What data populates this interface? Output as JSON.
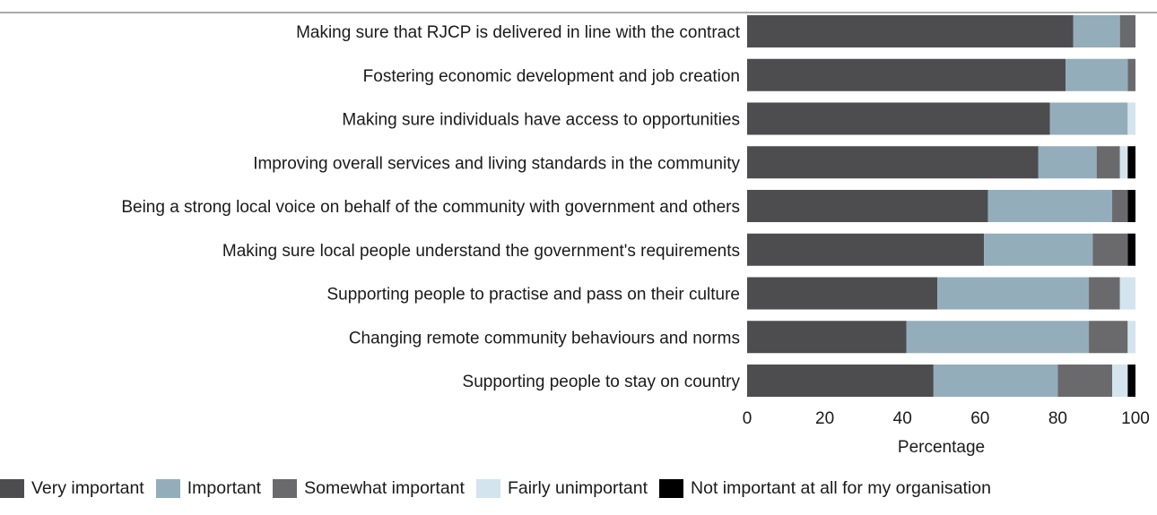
{
  "chart_data": {
    "type": "bar",
    "orientation": "horizontal",
    "stacked": true,
    "title": "",
    "xlabel": "Percentage",
    "ylabel": "",
    "xlim": [
      0,
      100
    ],
    "xticks": [
      "0",
      "20",
      "40",
      "60",
      "80",
      "100"
    ],
    "grid": false,
    "legend_position": "bottom",
    "categories": [
      "Making sure that RJCP is delivered in line with the contract",
      "Fostering economic development and job creation",
      "Making sure individuals have access to opportunities",
      "Improving overall services and living standards in the community",
      "Being a strong local voice on behalf of the community with government and others",
      "Making sure local people understand the government's requirements",
      "Supporting people to practise and pass on their culture",
      "Changing remote community behaviours and norms",
      "Supporting people to stay on country"
    ],
    "series": [
      {
        "name": "Very important",
        "color": "#4d4d4f",
        "values": [
          84,
          82,
          78,
          75,
          62,
          61,
          49,
          41,
          48
        ]
      },
      {
        "name": "Important",
        "color": "#93adbb",
        "values": [
          12,
          16,
          20,
          15,
          32,
          28,
          39,
          47,
          32
        ]
      },
      {
        "name": "Somewhat important",
        "color": "#6a6a6c",
        "values": [
          4,
          2,
          0,
          6,
          4,
          9,
          8,
          10,
          14
        ]
      },
      {
        "name": "Fairly unimportant",
        "color": "#d4e4ee",
        "values": [
          0,
          0,
          2,
          2,
          0,
          0,
          4,
          2,
          4
        ]
      },
      {
        "name": "Not important at all for my organisation",
        "color": "#000000",
        "values": [
          0,
          0,
          0,
          2,
          2,
          2,
          0,
          0,
          2
        ]
      }
    ]
  }
}
